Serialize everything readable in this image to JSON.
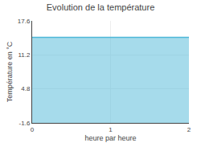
{
  "chart_data": {
    "type": "area",
    "title": "Evolution de la température",
    "xlabel": "heure par heure",
    "ylabel": "Température en °C",
    "x": [
      0,
      2
    ],
    "values": [
      14.5,
      14.5
    ],
    "color": "#4db8d8",
    "xlim": [
      0,
      2
    ],
    "ylim": [
      -1.6,
      17.6
    ],
    "xticks": [
      0,
      1,
      2
    ],
    "yticks": [
      -1.6,
      4.8,
      11.2,
      17.6
    ],
    "grid": true
  }
}
